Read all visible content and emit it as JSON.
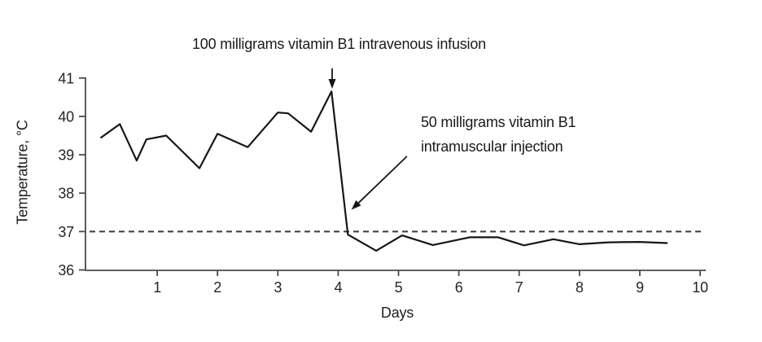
{
  "chart_data": {
    "type": "line",
    "title": "100 milligrams vitamin B1 intravenous infusion",
    "xlabel": "Days",
    "ylabel": "Temperature, °C",
    "xlim": [
      0,
      10
    ],
    "ylim": [
      36,
      41
    ],
    "x_ticks": [
      1,
      2,
      3,
      4,
      5,
      6,
      7,
      8,
      9,
      10
    ],
    "y_ticks": [
      36,
      37,
      38,
      39,
      40,
      41
    ],
    "grid": false,
    "legend": "none",
    "reference_line": {
      "y": 37,
      "style": "dashed"
    },
    "series": [
      {
        "name": "temperature",
        "points": [
          [
            0.07,
            39.45
          ],
          [
            0.38,
            39.8
          ],
          [
            0.66,
            38.85
          ],
          [
            0.82,
            39.4
          ],
          [
            1.15,
            39.5
          ],
          [
            1.7,
            38.65
          ],
          [
            2.0,
            39.55
          ],
          [
            2.5,
            39.2
          ],
          [
            3.0,
            40.1
          ],
          [
            3.17,
            40.08
          ],
          [
            3.55,
            39.6
          ],
          [
            3.89,
            40.65
          ],
          [
            4.16,
            36.92
          ],
          [
            4.63,
            36.5
          ],
          [
            5.06,
            36.9
          ],
          [
            5.57,
            36.65
          ],
          [
            6.18,
            36.85
          ],
          [
            6.65,
            36.85
          ],
          [
            7.08,
            36.64
          ],
          [
            7.57,
            36.8
          ],
          [
            8.0,
            36.67
          ],
          [
            8.48,
            36.72
          ],
          [
            9.0,
            36.73
          ],
          [
            9.45,
            36.7
          ]
        ]
      }
    ],
    "annotations": [
      {
        "id": "iv-infusion",
        "text": "100 milligrams vitamin B1 intravenous infusion",
        "arrow_from": {
          "day": 3.9,
          "temp": 41.25
        },
        "arrow_to": {
          "day": 3.9,
          "temp": 40.72
        }
      },
      {
        "id": "im-injection",
        "lines": [
          "50 milligrams vitamin B1",
          "intramuscular injection"
        ],
        "arrow_from": {
          "day": 5.14,
          "temp": 38.96
        },
        "arrow_to": {
          "day": 4.22,
          "temp": 37.57
        }
      }
    ],
    "colors": {
      "line": "#161616",
      "axis": "#4a4a4a",
      "reference_line": "#3a3a3a",
      "text": "#1a1a1a",
      "background": "#ffffff"
    }
  }
}
